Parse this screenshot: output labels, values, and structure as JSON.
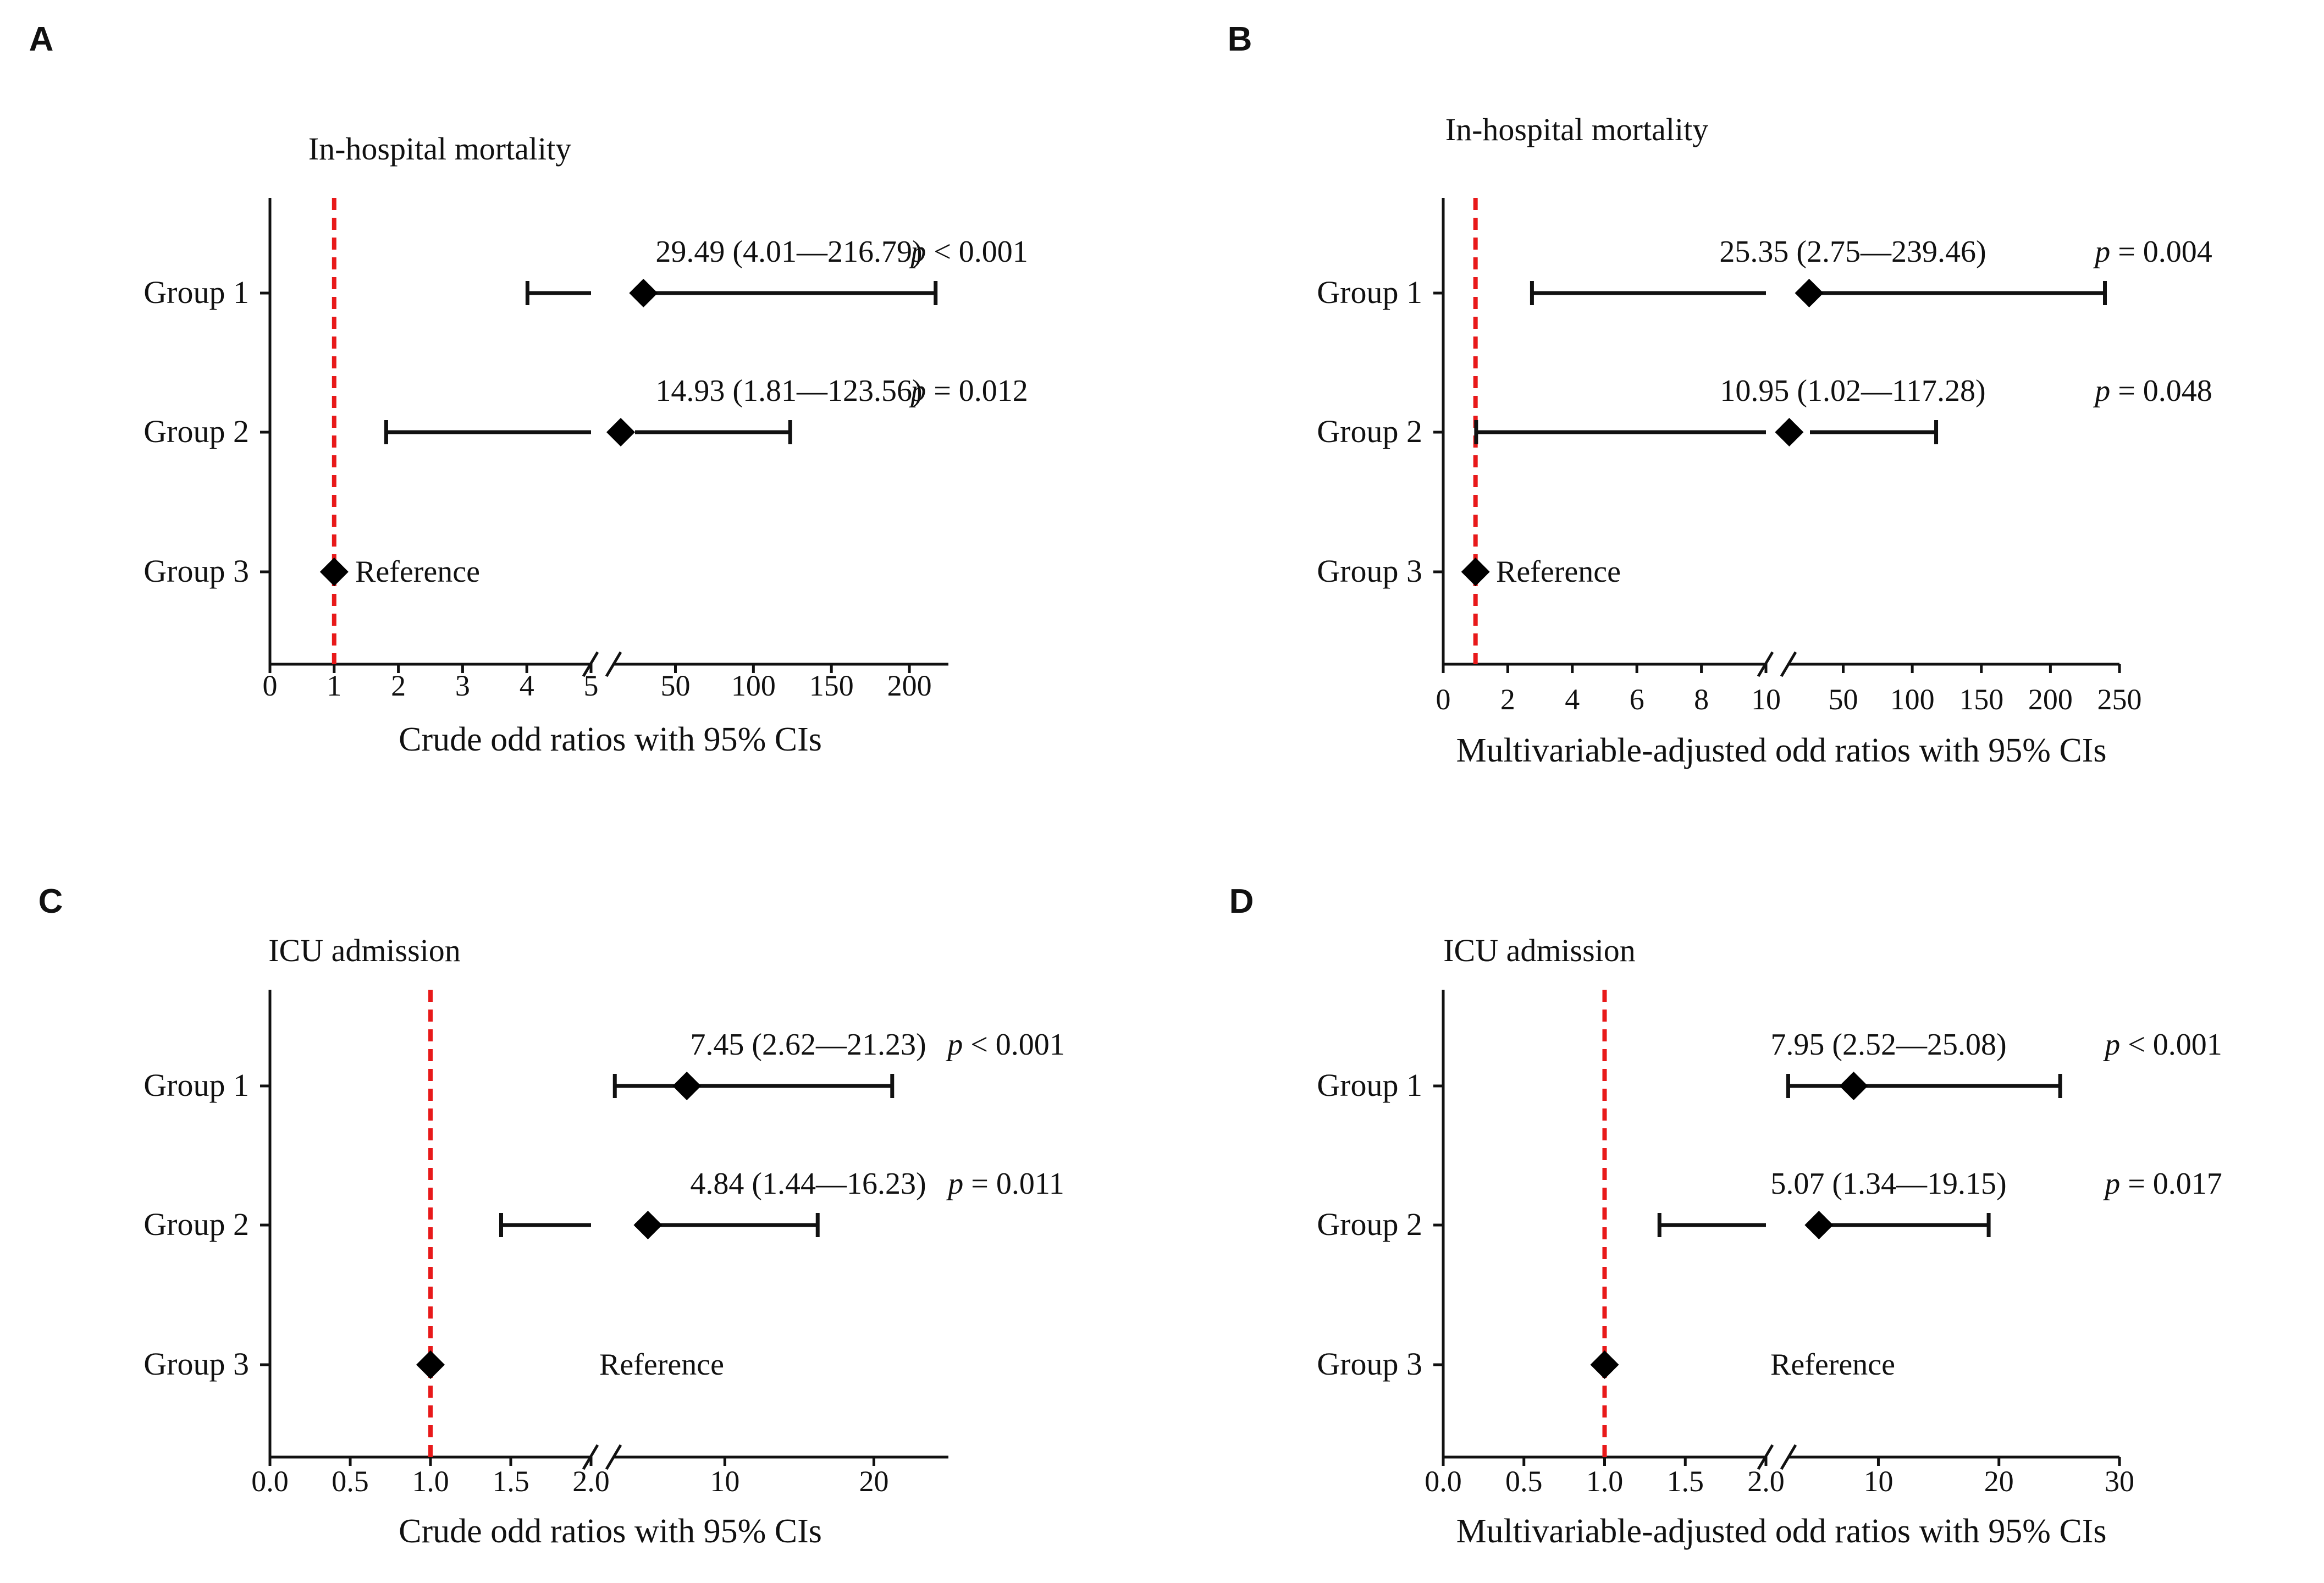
{
  "chart_data": [
    {
      "panel": "A",
      "type": "forest",
      "title": "In-hospital mortality",
      "xlabel": "Crude odd ratios with 95% CIs",
      "reference_line": 1,
      "x_segments": [
        {
          "range": [
            0,
            5
          ],
          "ticks": [
            0,
            1,
            2,
            3,
            4,
            5
          ],
          "tick_labels": [
            "0",
            "1",
            "2",
            "3",
            "4",
            "5"
          ]
        },
        {
          "range": [
            10,
            225
          ],
          "ticks": [
            50,
            100,
            150,
            200
          ],
          "tick_labels": [
            "50",
            "100",
            "150",
            "200"
          ]
        }
      ],
      "rows": [
        {
          "label": "Group 1",
          "or": 29.49,
          "lo": 4.01,
          "hi": 216.79,
          "text": "29.49 (4.01—216.79)",
          "p_label": "p",
          "p_value": "< 0.001"
        },
        {
          "label": "Group 2",
          "or": 14.93,
          "lo": 1.81,
          "hi": 123.56,
          "text": "14.93 (1.81—123.56)",
          "p_label": "p",
          "p_value": "= 0.012"
        },
        {
          "label": "Group 3",
          "or": 1,
          "ref_text": "Reference"
        }
      ]
    },
    {
      "panel": "B",
      "type": "forest",
      "title": "In-hospital mortality",
      "xlabel": "Multivariable-adjusted odd ratios with 95% CIs",
      "reference_line": 1,
      "x_segments": [
        {
          "range": [
            0,
            10
          ],
          "ticks": [
            0,
            2,
            4,
            6,
            8,
            10
          ],
          "tick_labels": [
            "0",
            "2",
            "4",
            "6",
            "8",
            "10"
          ]
        },
        {
          "range": [
            10,
            250
          ],
          "ticks": [
            50,
            100,
            150,
            200,
            250
          ],
          "tick_labels": [
            "50",
            "100",
            "150",
            "200",
            "250"
          ]
        }
      ],
      "rows": [
        {
          "label": "Group 1",
          "or": 25.35,
          "lo": 2.75,
          "hi": 239.46,
          "text": "25.35 (2.75—239.46)",
          "p_label": "p",
          "p_value": "= 0.004"
        },
        {
          "label": "Group 2",
          "or": 10.95,
          "lo": 1.02,
          "hi": 117.28,
          "text": "10.95 (1.02—117.28)",
          "p_label": "p",
          "p_value": "= 0.048"
        },
        {
          "label": "Group 3",
          "or": 1,
          "ref_text": "Reference"
        }
      ]
    },
    {
      "panel": "C",
      "type": "forest",
      "title": "ICU admission",
      "xlabel": "Crude odd ratios with 95% CIs",
      "reference_line": 1,
      "x_segments": [
        {
          "range": [
            0,
            2
          ],
          "ticks": [
            0,
            0.5,
            1,
            1.5,
            2
          ],
          "tick_labels": [
            "0.0",
            "0.5",
            "1.0",
            "1.5",
            "2.0"
          ]
        },
        {
          "range": [
            2.5,
            25
          ],
          "ticks": [
            10,
            20
          ],
          "tick_labels": [
            "10",
            "20"
          ]
        }
      ],
      "rows": [
        {
          "label": "Group 1",
          "or": 7.45,
          "lo": 2.62,
          "hi": 21.23,
          "text": "7.45 (2.62—21.23)",
          "p_label": "p",
          "p_value": "< 0.001"
        },
        {
          "label": "Group 2",
          "or": 4.84,
          "lo": 1.44,
          "hi": 16.23,
          "text": "4.84 (1.44—16.23)",
          "p_label": "p",
          "p_value": "= 0.011"
        },
        {
          "label": "Group 3",
          "or": 1,
          "ref_text": "Reference"
        }
      ]
    },
    {
      "panel": "D",
      "type": "forest",
      "title": "ICU admission",
      "xlabel": "Multivariable-adjusted odd ratios with 95% CIs",
      "reference_line": 1,
      "x_segments": [
        {
          "range": [
            0,
            2
          ],
          "ticks": [
            0,
            0.5,
            1,
            1.5,
            2
          ],
          "tick_labels": [
            "0.0",
            "0.5",
            "1.0",
            "1.5",
            "2.0"
          ]
        },
        {
          "range": [
            2.5,
            30
          ],
          "ticks": [
            10,
            20,
            30
          ],
          "tick_labels": [
            "10",
            "20",
            "30"
          ]
        }
      ],
      "rows": [
        {
          "label": "Group 1",
          "or": 7.95,
          "lo": 2.52,
          "hi": 25.08,
          "text": "7.95 (2.52—25.08)",
          "p_label": "p",
          "p_value": "< 0.001"
        },
        {
          "label": "Group 2",
          "or": 5.07,
          "lo": 1.34,
          "hi": 19.15,
          "text": "5.07 (1.34—19.15)",
          "p_label": "p",
          "p_value": "= 0.017"
        },
        {
          "label": "Group 3",
          "or": 1,
          "ref_text": "Reference"
        }
      ]
    }
  ]
}
